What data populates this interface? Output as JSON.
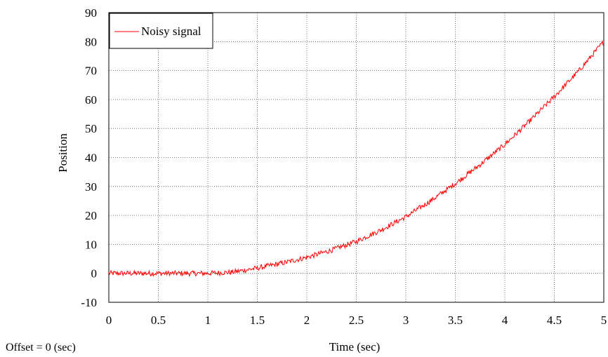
{
  "chart_data": {
    "type": "line",
    "title": "",
    "xlabel": "Time (sec)",
    "ylabel": "Position",
    "xlim": [
      0,
      5
    ],
    "ylim": [
      -10,
      90
    ],
    "x_ticks": [
      "0",
      "0.5",
      "1",
      "1.5",
      "2",
      "2.5",
      "3",
      "3.5",
      "4",
      "4.5",
      "5"
    ],
    "y_ticks": [
      "-10",
      "0",
      "10",
      "20",
      "30",
      "40",
      "50",
      "60",
      "70",
      "80",
      "90"
    ],
    "grid": true,
    "grid_style": "dotted",
    "legend_position": "top-left",
    "series": [
      {
        "name": "Noisy signal",
        "color": "#ff0000",
        "noise_amplitude": 0.9,
        "x": [
          0,
          0.25,
          0.5,
          0.75,
          1.0,
          1.25,
          1.5,
          1.75,
          2.0,
          2.25,
          2.5,
          2.75,
          3.0,
          3.25,
          3.5,
          3.75,
          4.0,
          4.25,
          4.5,
          4.75,
          5.0
        ],
        "y": [
          0,
          0,
          0,
          0,
          0,
          0.4,
          1.8,
          3.5,
          5.5,
          8.0,
          11.0,
          15.0,
          19.5,
          25.0,
          31.0,
          37.5,
          44.5,
          52.5,
          61.0,
          70.0,
          80.0
        ]
      }
    ]
  },
  "footer": {
    "offset_note": "Offset = 0 (sec)"
  }
}
